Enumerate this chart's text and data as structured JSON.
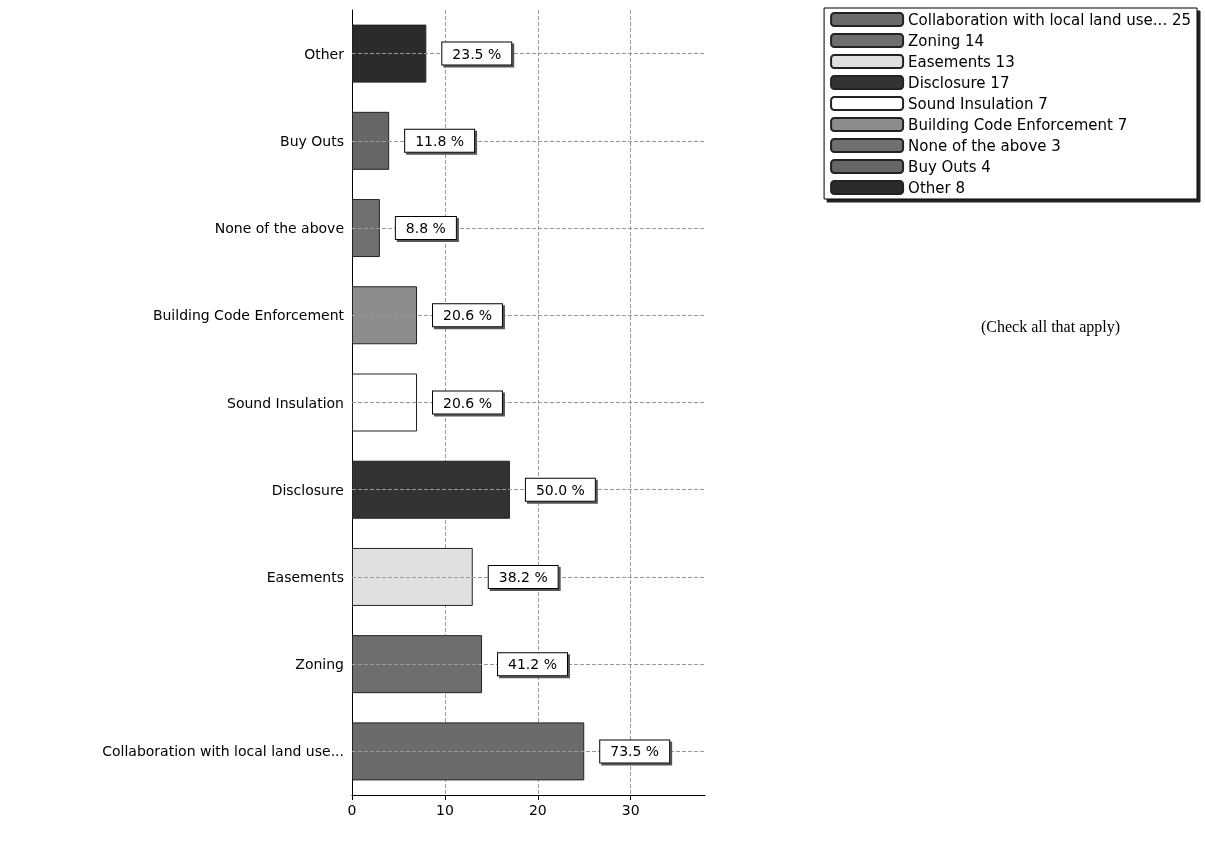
{
  "chart_data": {
    "type": "bar",
    "orientation": "horizontal",
    "categories": [
      "Other",
      "Buy Outs",
      "None of the above",
      "Building Code Enforcement",
      "Sound Insulation",
      "Disclosure",
      "Easements",
      "Zoning",
      "Collaboration with local land use..."
    ],
    "series": [
      {
        "name": "Collaboration with local land use... 25",
        "color": "#6b6b6b",
        "values": [
          null,
          null,
          null,
          null,
          null,
          null,
          null,
          null,
          25
        ]
      },
      {
        "name": "Zoning 14",
        "color": "#6e6e6e",
        "values": [
          null,
          null,
          null,
          null,
          null,
          null,
          null,
          14,
          null
        ]
      },
      {
        "name": "Easements 13",
        "color": "#e0e0e0",
        "values": [
          null,
          null,
          null,
          null,
          null,
          null,
          13,
          null,
          null
        ]
      },
      {
        "name": "Disclosure 17",
        "color": "#333333",
        "values": [
          null,
          null,
          null,
          null,
          null,
          17,
          null,
          null,
          null
        ]
      },
      {
        "name": "Sound Insulation 7",
        "color": "#ffffff",
        "values": [
          null,
          null,
          null,
          null,
          7,
          null,
          null,
          null,
          null
        ]
      },
      {
        "name": "Building Code Enforcement 7",
        "color": "#8c8c8c",
        "values": [
          null,
          null,
          null,
          7,
          null,
          null,
          null,
          null,
          null
        ]
      },
      {
        "name": "None of the above 3",
        "color": "#707070",
        "values": [
          null,
          null,
          3,
          null,
          null,
          null,
          null,
          null,
          null
        ]
      },
      {
        "name": "Buy Outs 4",
        "color": "#666666",
        "values": [
          null,
          4,
          null,
          null,
          null,
          null,
          null,
          null,
          null
        ]
      },
      {
        "name": "Other 8",
        "color": "#2b2b2b",
        "values": [
          8,
          null,
          null,
          null,
          null,
          null,
          null,
          null,
          null
        ]
      }
    ],
    "xlim": [
      0,
      38
    ],
    "xticks": [
      0,
      10,
      20,
      30
    ],
    "grid": true,
    "legend": "top right",
    "annotations": [
      {
        "text": "73.5 %",
        "x": 25,
        "y": "Collaboration with local land use..."
      },
      {
        "text": "41.2 %",
        "x": 14,
        "y": "Zoning"
      },
      {
        "text": "38.2 %",
        "x": 13,
        "y": "Easements"
      },
      {
        "text": "50.0 %",
        "x": 17,
        "y": "Disclosure"
      },
      {
        "text": "20.6 %",
        "x": 7,
        "y": "Sound Insulation"
      },
      {
        "text": "20.6 %",
        "x": 7,
        "y": "Building Code Enforcement"
      },
      {
        "text": "8.8 %",
        "x": 3,
        "y": "None of the above"
      },
      {
        "text": "11.8 %",
        "x": 4,
        "y": "Buy Outs"
      },
      {
        "text": "23.5 %",
        "x": 8,
        "y": "Other"
      },
      "(Check all that apply)"
    ]
  }
}
